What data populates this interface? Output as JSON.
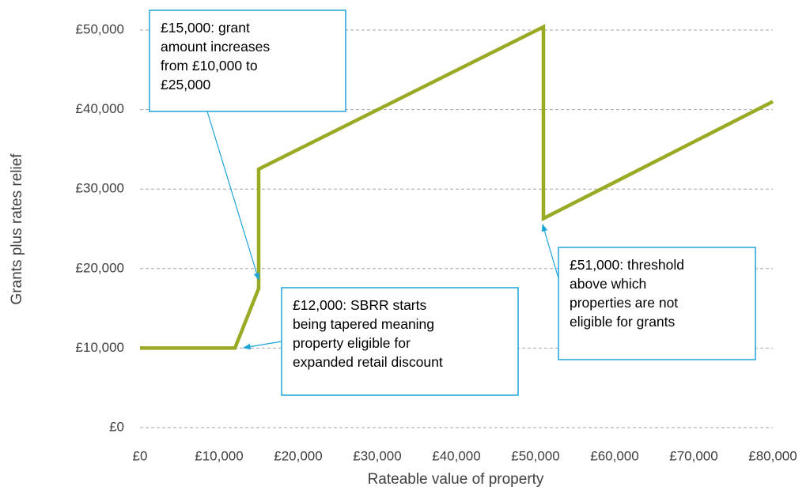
{
  "chart_data": {
    "type": "line",
    "x_label": "Rateable value of property",
    "y_label": "Grants plus rates relief",
    "series": [
      {
        "name": "Grants plus rates relief",
        "color": "#9aaa24",
        "x": [
          0,
          12000,
          15000,
          15000,
          51000,
          51000,
          80000
        ],
        "values": [
          10000,
          10000,
          17500,
          32500,
          50400,
          26300,
          41000
        ]
      }
    ],
    "xlim": [
      0,
      80000
    ],
    "ylim": [
      0,
      50000
    ],
    "xticks": [
      {
        "value": 0,
        "label": "£0"
      },
      {
        "value": 10000,
        "label": "£10,000"
      },
      {
        "value": 20000,
        "label": "£20,000"
      },
      {
        "value": 30000,
        "label": "£30,000"
      },
      {
        "value": 40000,
        "label": "£40,000"
      },
      {
        "value": 50000,
        "label": "£50,000"
      },
      {
        "value": 60000,
        "label": "£60,000"
      },
      {
        "value": 70000,
        "label": "£70,000"
      },
      {
        "value": 80000,
        "label": "£80,000"
      }
    ],
    "yticks": [
      {
        "value": 0,
        "label": "£0"
      },
      {
        "value": 10000,
        "label": "£10,000"
      },
      {
        "value": 20000,
        "label": "£20,000"
      },
      {
        "value": 30000,
        "label": "£30,000"
      },
      {
        "value": 40000,
        "label": "£40,000"
      },
      {
        "value": 50000,
        "label": "£50,000"
      }
    ],
    "grid": true,
    "annotations": [
      {
        "lines": [
          "£15,000: grant",
          "amount increases",
          "from £10,000 to",
          "£25,000"
        ]
      },
      {
        "lines": [
          "£12,000: SBRR starts",
          "being tapered meaning",
          "property eligible for",
          "expanded retail discount"
        ]
      },
      {
        "lines": [
          "£51,000: threshold",
          "above which",
          "properties are not",
          "eligible for grants"
        ]
      }
    ]
  }
}
